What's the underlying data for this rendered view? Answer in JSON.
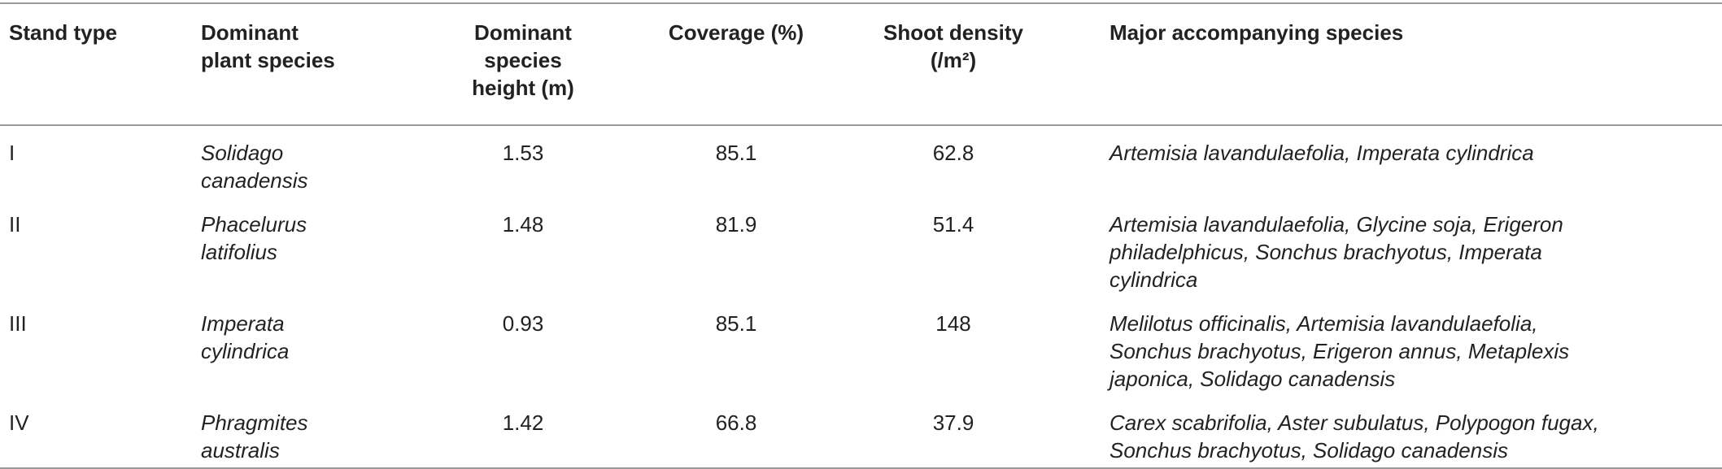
{
  "table": {
    "headers": [
      "Stand type",
      "Dominant plant species",
      "Dominant species height (m)",
      "Coverage (%)",
      "Shoot density (/m²)",
      "Major accompanying species"
    ],
    "rows": [
      [
        "I",
        "Solidago canadensis",
        1.53,
        85.1,
        62.8,
        "Artemisia lavandulaefolia, Imperata cylindrica"
      ],
      [
        "II",
        "Phacelurus latifolius",
        1.48,
        81.9,
        51.4,
        "Artemisia lavandulaefolia, Glycine soja, Erigeron philadelphicus, Sonchus brachyotus, Imperata cylindrica"
      ],
      [
        "III",
        "Imperata cylindrica",
        0.93,
        85.1,
        148,
        "Melilotus officinalis, Artemisia lavandulaefolia, Sonchus brachyotus, Erigeron annus, Metaplexis japonica, Solidago canadensis"
      ],
      [
        "IV",
        "Phragmites australis",
        1.42,
        66.8,
        37.9,
        "Carex scabrifolia, Aster subulatus, Polypogon fugax, Sonchus brachyotus, Solidago canadensis"
      ]
    ]
  }
}
